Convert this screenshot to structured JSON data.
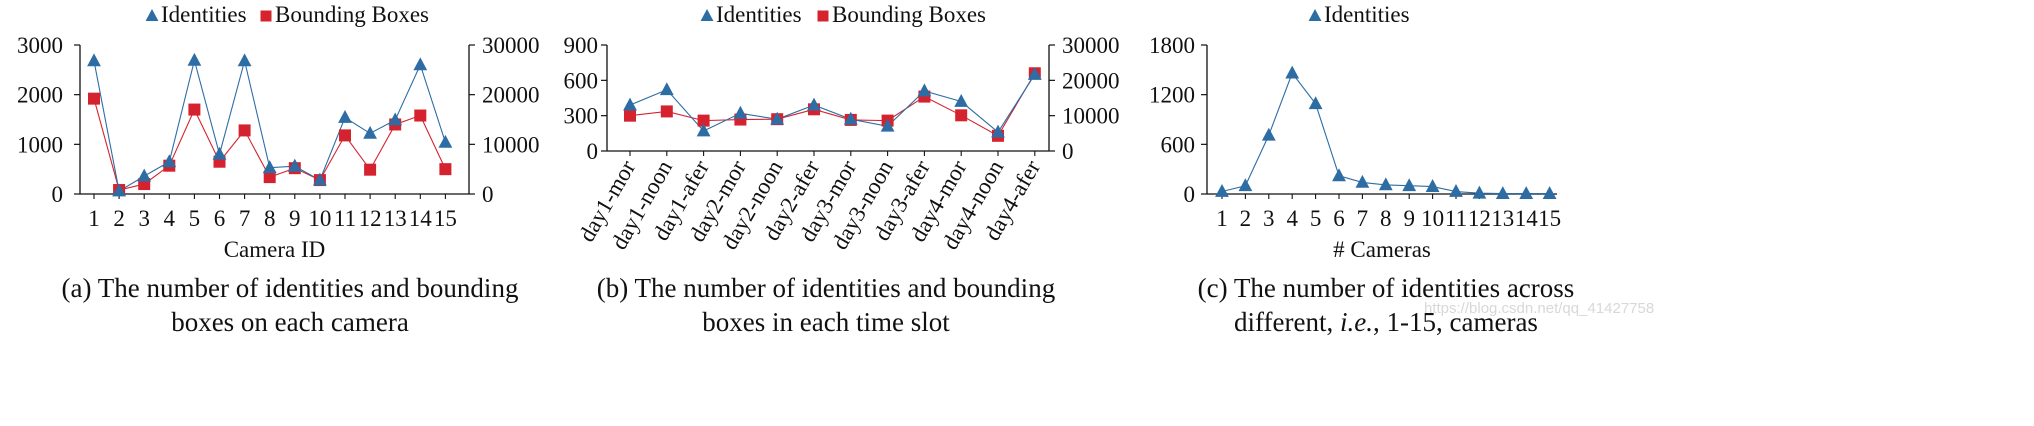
{
  "colors": {
    "identities": "#2e6da4",
    "bboxes": "#d4232f",
    "axis": "#111111"
  },
  "captions": {
    "a_line1": "(a) The number of identities and bounding",
    "a_line2": "boxes on each camera",
    "b_line1": "(b) The number of identities and bounding",
    "b_line2": "boxes in each time slot",
    "c_line1": "(c) The number of identities across",
    "c_line2_pre": "different, ",
    "c_line2_em": "i.e.",
    "c_line2_post": ", 1-15, cameras"
  },
  "watermark": "https://blog.csdn.net/qq_41427758",
  "chart_data": [
    {
      "id": "a",
      "type": "line",
      "xlabel": "Camera ID",
      "categories": [
        "1",
        "2",
        "3",
        "4",
        "5",
        "6",
        "7",
        "8",
        "9",
        "10",
        "11",
        "12",
        "13",
        "14",
        "15"
      ],
      "legend": [
        "Identities",
        "Bounding Boxes"
      ],
      "y_left": {
        "lim": [
          0,
          3000
        ],
        "ticks": [
          0,
          1000,
          2000,
          3000
        ],
        "labels": [
          "0",
          "1000",
          "2000",
          "3000"
        ]
      },
      "y_right": {
        "lim": [
          0,
          30000
        ],
        "ticks": [
          0,
          10000,
          20000,
          30000
        ],
        "labels": [
          "0",
          "10000",
          "20000",
          "30000"
        ]
      },
      "series": [
        {
          "name": "Identities",
          "axis": "left",
          "marker": "triangle",
          "values": [
            2680,
            60,
            360,
            650,
            2690,
            800,
            2680,
            530,
            560,
            280,
            1540,
            1220,
            1490,
            2600,
            1040
          ]
        },
        {
          "name": "Bounding Boxes",
          "axis": "right",
          "marker": "square",
          "values": [
            19200,
            800,
            2000,
            5700,
            17000,
            6500,
            12800,
            3400,
            5200,
            2800,
            11800,
            4900,
            14000,
            15800,
            5000
          ]
        }
      ]
    },
    {
      "id": "b",
      "type": "line",
      "xlabel": "",
      "categories": [
        "day1-mor",
        "day1-noon",
        "day1-afer",
        "day2-mor",
        "day2-noon",
        "day2-afer",
        "day3-mor",
        "day3-noon",
        "day3-afer",
        "day4-mor",
        "day4-noon",
        "day4-afer"
      ],
      "legend": [
        "Identities",
        "Bounding Boxes"
      ],
      "y_left": {
        "lim": [
          0,
          900
        ],
        "ticks": [
          0,
          300,
          600,
          900
        ],
        "labels": [
          "0",
          "300",
          "600",
          "900"
        ]
      },
      "y_right": {
        "lim": [
          0,
          30000
        ],
        "ticks": [
          0,
          10000,
          20000,
          30000
        ],
        "labels": [
          "0",
          "10000",
          "20000",
          "30000"
        ]
      },
      "series": [
        {
          "name": "Identities",
          "axis": "left",
          "marker": "triangle",
          "values": [
            390,
            520,
            170,
            320,
            270,
            390,
            270,
            210,
            510,
            420,
            160,
            650
          ]
        },
        {
          "name": "Bounding Boxes",
          "axis": "right",
          "marker": "square",
          "values": [
            10000,
            11200,
            8600,
            8900,
            9000,
            11800,
            8800,
            8600,
            15400,
            10100,
            4300,
            22000
          ]
        }
      ]
    },
    {
      "id": "c",
      "type": "line",
      "xlabel": "# Cameras",
      "categories": [
        "1",
        "2",
        "3",
        "4",
        "5",
        "6",
        "7",
        "8",
        "9",
        "10",
        "11",
        "12",
        "13",
        "14",
        "15"
      ],
      "legend": [
        "Identities"
      ],
      "y_left": {
        "lim": [
          0,
          1800
        ],
        "ticks": [
          0,
          600,
          1200,
          1800
        ],
        "labels": [
          "0",
          "600",
          "1200",
          "1800"
        ]
      },
      "series": [
        {
          "name": "Identities",
          "axis": "left",
          "marker": "triangle",
          "values": [
            30,
            100,
            710,
            1460,
            1090,
            220,
            140,
            110,
            100,
            90,
            30,
            10,
            5,
            5,
            5
          ]
        }
      ]
    }
  ]
}
